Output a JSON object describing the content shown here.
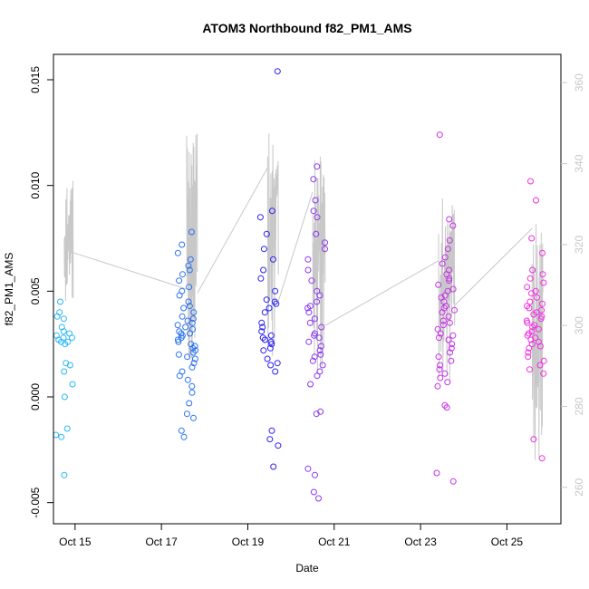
{
  "chart_data": {
    "type": "scatter",
    "title": "ATOM3 Northbound f82_PM1_AMS",
    "xlabel": "Date",
    "ylabel": "f82_PM1_AMS",
    "x_ticks": [
      "Oct 15",
      "Oct 17",
      "Oct 19",
      "Oct 21",
      "Oct 23",
      "Oct 25"
    ],
    "y_ticks": [
      "-0.005",
      "0.000",
      "0.005",
      "0.010",
      "0.015"
    ],
    "y2_ticks": [
      "260",
      "280",
      "300",
      "320",
      "340",
      "360"
    ],
    "xlim": [
      "Oct 14 12:00",
      "Oct 26 06:00"
    ],
    "ylim": [
      -0.006,
      0.0162
    ],
    "y2lim": [
      251,
      367
    ],
    "grid": false,
    "marker": "open circle",
    "point_color_gradient": [
      "#29b6f6",
      "#2a4ff0",
      "#2b1ff2",
      "#7b3af0",
      "#c72fe8",
      "#f22ee0"
    ],
    "series": [
      {
        "name": "",
        "groups": [
          {
            "x": "Oct 14 18:00",
            "color": "#29b6f6",
            "y": [
              0.0045,
              0.004,
              0.0038,
              0.0037,
              0.0033,
              0.0031,
              0.003,
              0.0029,
              0.0028,
              0.0028,
              0.0027,
              0.0026,
              0.0026,
              0.0025,
              0.0016,
              0.0015,
              0.0012,
              0.0006,
              0.0,
              -0.0015,
              -0.0018,
              -0.0019,
              -0.0037
            ]
          },
          {
            "x": "Oct 17 14:00",
            "color": "#2a72f0",
            "y": [
              0.0078,
              0.0072,
              0.0068,
              0.0065,
              0.0062,
              0.006,
              0.0058,
              0.0055,
              0.0052,
              0.005,
              0.0048,
              0.0045,
              0.0043,
              0.0042,
              0.004,
              0.0038,
              0.0037,
              0.0036,
              0.0035,
              0.0034,
              0.0033,
              0.0032,
              0.0031,
              0.003,
              0.003,
              0.0029,
              0.0028,
              0.0027,
              0.0026,
              0.0025,
              0.0024,
              0.0023,
              0.0022,
              0.0021,
              0.002,
              0.0019,
              0.0018,
              0.0016,
              0.0014,
              0.0012,
              0.001,
              0.0008,
              0.0005,
              0.0002,
              -0.0003,
              -0.0008,
              -0.001,
              -0.0016,
              -0.0019
            ]
          },
          {
            "x": "Oct 19 12:00",
            "color": "#2b1ff2",
            "y": [
              0.0154,
              0.0088,
              0.0085,
              0.0077,
              0.007,
              0.0065,
              0.006,
              0.0056,
              0.005,
              0.0046,
              0.0045,
              0.0044,
              0.0042,
              0.004,
              0.0035,
              0.0033,
              0.0031,
              0.0029,
              0.0028,
              0.0027,
              0.0026,
              0.0025,
              0.0023,
              0.0022,
              0.0018,
              0.0016,
              0.0015,
              0.0012,
              -0.0016,
              -0.002,
              -0.0023,
              -0.0033
            ]
          },
          {
            "x": "Oct 20 14:00",
            "color": "#8b36ef",
            "y": [
              0.0109,
              0.0103,
              0.0093,
              0.0088,
              0.0085,
              0.0077,
              0.0073,
              0.007,
              0.0065,
              0.006,
              0.0055,
              0.005,
              0.0048,
              0.0045,
              0.0043,
              0.0042,
              0.004,
              0.0037,
              0.0035,
              0.0033,
              0.003,
              0.0029,
              0.0028,
              0.0026,
              0.0024,
              0.0022,
              0.002,
              0.0019,
              0.0017,
              0.0015,
              0.0012,
              0.001,
              0.0006,
              -0.0007,
              -0.0008,
              -0.0034,
              -0.0037,
              -0.0045,
              -0.0048
            ]
          },
          {
            "x": "Oct 23 14:00",
            "color": "#c72fe8",
            "y": [
              0.0124,
              0.0084,
              0.0081,
              0.0074,
              0.007,
              0.0066,
              0.0063,
              0.006,
              0.0058,
              0.0056,
              0.0055,
              0.0053,
              0.0051,
              0.005,
              0.0048,
              0.0047,
              0.0045,
              0.0043,
              0.0042,
              0.0041,
              0.004,
              0.0038,
              0.0036,
              0.0035,
              0.0034,
              0.0032,
              0.003,
              0.0029,
              0.0028,
              0.0027,
              0.0025,
              0.0023,
              0.0021,
              0.0019,
              0.0017,
              0.0015,
              0.0013,
              0.0011,
              0.0009,
              0.0007,
              0.0005,
              -0.0004,
              -0.0005,
              -0.0036,
              -0.004
            ]
          },
          {
            "x": "Oct 25 16:00",
            "color": "#f22ee0",
            "y": [
              0.0102,
              0.0093,
              0.0075,
              0.0068,
              0.006,
              0.0058,
              0.0056,
              0.0054,
              0.0052,
              0.005,
              0.0049,
              0.0047,
              0.0045,
              0.0044,
              0.0043,
              0.0042,
              0.0041,
              0.004,
              0.0039,
              0.0038,
              0.0037,
              0.0036,
              0.0035,
              0.0034,
              0.0033,
              0.0032,
              0.0031,
              0.003,
              0.0029,
              0.0028,
              0.0027,
              0.0026,
              0.0025,
              0.0024,
              0.0023,
              0.0021,
              0.0019,
              0.0017,
              0.0015,
              0.0013,
              0.0011,
              -0.002,
              -0.0029
            ]
          }
        ]
      }
    ],
    "secondary_line": {
      "color": "#c8c8c8",
      "y2_scale": true,
      "segments": [
        {
          "x": [
            "Oct 14 18:00",
            "Oct 14 23:00"
          ],
          "y2": [
            305,
            336
          ]
        },
        {
          "x": [
            "Oct 17 14:00",
            "Oct 17 20:00"
          ],
          "y2": [
            290,
            348
          ]
        },
        {
          "x": [
            "Oct 19 11:00",
            "Oct 19 17:00"
          ],
          "y2": [
            292,
            350
          ]
        },
        {
          "x": [
            "Oct 20 12:00",
            "Oct 20 19:00"
          ],
          "y2": [
            288,
            342
          ]
        },
        {
          "x": [
            "Oct 23 10:00",
            "Oct 23 19:00"
          ],
          "y2": [
            285,
            333
          ]
        },
        {
          "x": [
            "Oct 25 14:00",
            "Oct 25 20:00"
          ],
          "y2": [
            265,
            326
          ]
        }
      ],
      "connectors": [
        {
          "x": [
            "Oct 14 23:00",
            "Oct 17 14:00"
          ],
          "y2": [
            318,
            309
          ]
        },
        {
          "x": [
            "Oct 17 20:00",
            "Oct 19 11:00"
          ],
          "y2": [
            308,
            339
          ]
        },
        {
          "x": [
            "Oct 19 17:00",
            "Oct 20 12:00"
          ],
          "y2": [
            306,
            333
          ]
        },
        {
          "x": [
            "Oct 20 19:00",
            "Oct 23 10:00"
          ],
          "y2": [
            300,
            316
          ]
        },
        {
          "x": [
            "Oct 23 19:00",
            "Oct 25 14:00"
          ],
          "y2": [
            305,
            324
          ]
        }
      ]
    }
  }
}
